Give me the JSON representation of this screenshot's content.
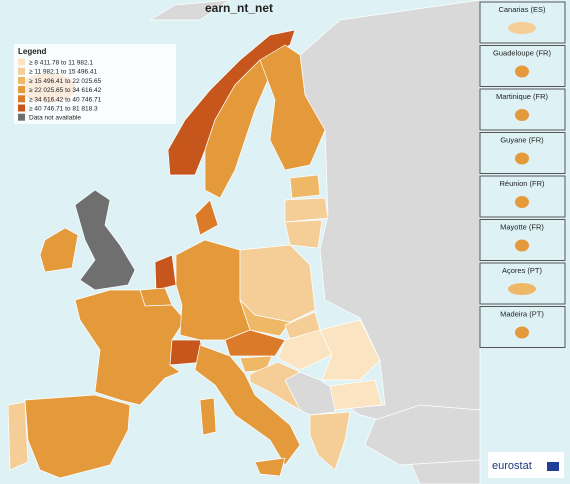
{
  "title": "earn_nt_net",
  "legend": {
    "title": "Legend",
    "items": [
      {
        "label": "≥ 8 411.78 to 11 982.1",
        "color": "#fbe4c1"
      },
      {
        "label": "≥ 11 982.1 to 15 496.41",
        "color": "#f5cd96"
      },
      {
        "label": "≥ 15 496.41 to 22 025.65",
        "color": "#efb866"
      },
      {
        "label": "≥ 22 025.65 to 34 616.42",
        "color": "#e4993a"
      },
      {
        "label": "≥ 34 616.42 to 40 746.71",
        "color": "#db7a28"
      },
      {
        "label": "≥ 40 746.71 to 81 818.3",
        "color": "#c6561b"
      },
      {
        "label": "Data not available",
        "color": "#6f6f6f"
      }
    ]
  },
  "insets": [
    "Canarias (ES)",
    "Guadeloupe (FR)",
    "Martinique (FR)",
    "Guyane (FR)",
    "Réunion (FR)",
    "Mayotte (FR)",
    "Açores (PT)",
    "Madeira (PT)"
  ],
  "logo": "eurostat"
}
